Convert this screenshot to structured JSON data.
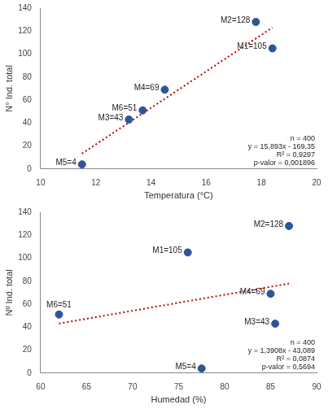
{
  "chart_data": [
    {
      "type": "scatter",
      "x_label": "Temperatura (°C)",
      "y_label": "N° Ind. total",
      "x": [
        18.4,
        17.8,
        13.2,
        14.5,
        11.5,
        13.7
      ],
      "values": [
        105,
        128,
        43,
        69,
        4,
        51
      ],
      "value_labels": [
        "M1=105",
        "M2=128",
        "M3=43",
        "M4=69",
        "M5=4",
        "M6=51"
      ],
      "data_labels": true,
      "color": "#2e5597",
      "marker": "circle",
      "trendline": {
        "x": [
          11.5,
          18.4
        ],
        "values": [
          13.4,
          123.1
        ],
        "color": "#c00000",
        "line_style": "dotted"
      },
      "annotation": [
        "n = 400",
        "y = 15,893x - 169,35",
        "R² = 0,9297",
        "p-valor = 0,001896"
      ],
      "xlim": [
        10,
        20
      ],
      "xticks": [
        10,
        12,
        14,
        16,
        18,
        20
      ],
      "ylim": [
        0,
        140
      ],
      "yticks": [
        0,
        20,
        40,
        60,
        80,
        100,
        120,
        140
      ],
      "grid": false
    },
    {
      "type": "scatter",
      "x_label": "Humedad (%)",
      "y_label": "Nº Ind. total",
      "x": [
        76,
        87,
        85.5,
        85,
        77.5,
        62
      ],
      "values": [
        105,
        128,
        43,
        69,
        4,
        51
      ],
      "value_labels": [
        "M1=105",
        "M2=128",
        "M3=43",
        "M4=69",
        "M5=4",
        "M6=51"
      ],
      "data_labels": true,
      "color": "#2e5597",
      "marker": "circle",
      "trendline": {
        "x": [
          62,
          87
        ],
        "values": [
          43.1,
          77.9
        ],
        "color": "#c00000",
        "line_style": "dotted"
      },
      "annotation": [
        "n = 400",
        "y = 1,3908x - 43,089",
        "R² = 0,0874",
        "p-valor = 0,5694"
      ],
      "xlim": [
        60,
        90
      ],
      "xticks": [
        60,
        65,
        70,
        75,
        80,
        85,
        90
      ],
      "ylim": [
        0,
        140
      ],
      "yticks": [
        0,
        20,
        40,
        60,
        80,
        100,
        120,
        140
      ],
      "grid": false
    }
  ]
}
